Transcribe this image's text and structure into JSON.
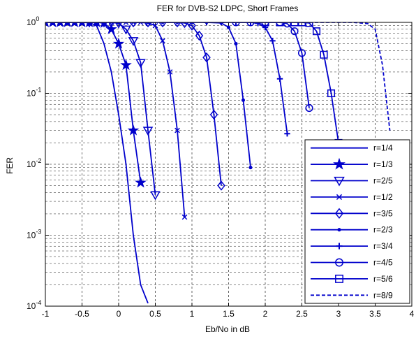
{
  "chart_data": {
    "type": "line",
    "title": "FER for DVB-S2 LDPC, Short Frames",
    "xlabel": "Eb/No in dB",
    "ylabel": "FER",
    "xlim": [
      -1,
      4
    ],
    "ylim": [
      0.0001,
      1
    ],
    "yscale": "log",
    "grid": true,
    "legend_position": "bottom-right",
    "x_ticks": [
      "-1",
      "-0.5",
      "0",
      "0.5",
      "1",
      "1.5",
      "2",
      "2.5",
      "3",
      "3.5",
      "4"
    ],
    "y_ticks": [
      {
        "base": "10",
        "exp": "0",
        "value": 1
      },
      {
        "base": "10",
        "exp": "-1",
        "value": 0.1
      },
      {
        "base": "10",
        "exp": "-2",
        "value": 0.01
      },
      {
        "base": "10",
        "exp": "-3",
        "value": 0.001
      },
      {
        "base": "10",
        "exp": "-4",
        "value": 0.0001
      }
    ],
    "series_color": "#0000cc",
    "series": [
      {
        "name": "r=1/4",
        "marker": "none",
        "dash": "solid",
        "x": [
          -1,
          -0.9,
          -0.8,
          -0.7,
          -0.6,
          -0.5,
          -0.4,
          -0.3,
          -0.2,
          -0.1,
          0,
          0.1,
          0.2,
          0.3,
          0.4
        ],
        "y": [
          1,
          1,
          1,
          1,
          1,
          1,
          0.99,
          0.9,
          0.5,
          0.2,
          0.05,
          0.01,
          0.001,
          0.0002,
          0.00011
        ]
      },
      {
        "name": "r=1/3",
        "marker": "star",
        "dash": "solid",
        "x": [
          -1,
          -0.9,
          -0.8,
          -0.7,
          -0.6,
          -0.5,
          -0.4,
          -0.3,
          -0.2,
          -0.1,
          0,
          0.1,
          0.2,
          0.3
        ],
        "y": [
          1,
          1,
          1,
          1,
          1,
          1,
          1,
          1,
          0.98,
          0.8,
          0.5,
          0.25,
          0.03,
          0.0055
        ]
      },
      {
        "name": "r=2/5",
        "marker": "triangle-down",
        "dash": "solid",
        "x": [
          -0.4,
          -0.3,
          -0.2,
          -0.1,
          0,
          0.1,
          0.2,
          0.3,
          0.4,
          0.5
        ],
        "y": [
          1,
          1,
          1,
          1,
          0.97,
          0.8,
          0.55,
          0.27,
          0.03,
          0.0037
        ]
      },
      {
        "name": "r=1/2",
        "marker": "x",
        "dash": "solid",
        "x": [
          -0.1,
          0,
          0.1,
          0.2,
          0.3,
          0.4,
          0.5,
          0.6,
          0.7,
          0.8,
          0.9
        ],
        "y": [
          1,
          1,
          1,
          1,
          1,
          0.98,
          0.9,
          0.55,
          0.2,
          0.03,
          0.0018
        ]
      },
      {
        "name": "r=3/5",
        "marker": "diamond",
        "dash": "solid",
        "x": [
          0.2,
          0.4,
          0.6,
          0.8,
          0.9,
          1.0,
          1.1,
          1.2,
          1.3,
          1.4
        ],
        "y": [
          1,
          1,
          1,
          1,
          0.98,
          0.9,
          0.65,
          0.32,
          0.05,
          0.005
        ]
      },
      {
        "name": "r=2/3",
        "marker": "dot",
        "dash": "solid",
        "x": [
          0.6,
          0.8,
          1.0,
          1.2,
          1.4,
          1.5,
          1.6,
          1.7,
          1.8
        ],
        "y": [
          1,
          1,
          1,
          1,
          0.98,
          0.85,
          0.5,
          0.08,
          0.009
        ]
      },
      {
        "name": "r=3/4",
        "marker": "plus",
        "dash": "solid",
        "x": [
          1.2,
          1.4,
          1.6,
          1.8,
          1.9,
          2.0,
          2.1,
          2.2,
          2.3
        ],
        "y": [
          1,
          1,
          1,
          1,
          0.97,
          0.85,
          0.55,
          0.16,
          0.027
        ]
      },
      {
        "name": "r=4/5",
        "marker": "circle",
        "dash": "solid",
        "x": [
          1.6,
          1.8,
          2.0,
          2.2,
          2.3,
          2.4,
          2.5,
          2.6
        ],
        "y": [
          1,
          1,
          1,
          1,
          0.96,
          0.75,
          0.37,
          0.062
        ]
      },
      {
        "name": "r=5/6",
        "marker": "square",
        "dash": "solid",
        "x": [
          2.0,
          2.2,
          2.4,
          2.5,
          2.6,
          2.7,
          2.8,
          2.9,
          3.0
        ],
        "y": [
          1,
          1,
          1,
          1,
          0.98,
          0.75,
          0.35,
          0.1,
          0.02
        ]
      },
      {
        "name": "r=8/9",
        "marker": "none",
        "dash": "dashed",
        "x": [
          2.6,
          2.8,
          3.0,
          3.2,
          3.4,
          3.5,
          3.6,
          3.7
        ],
        "y": [
          1,
          1,
          1,
          1,
          0.96,
          0.8,
          0.25,
          0.03
        ]
      }
    ]
  }
}
